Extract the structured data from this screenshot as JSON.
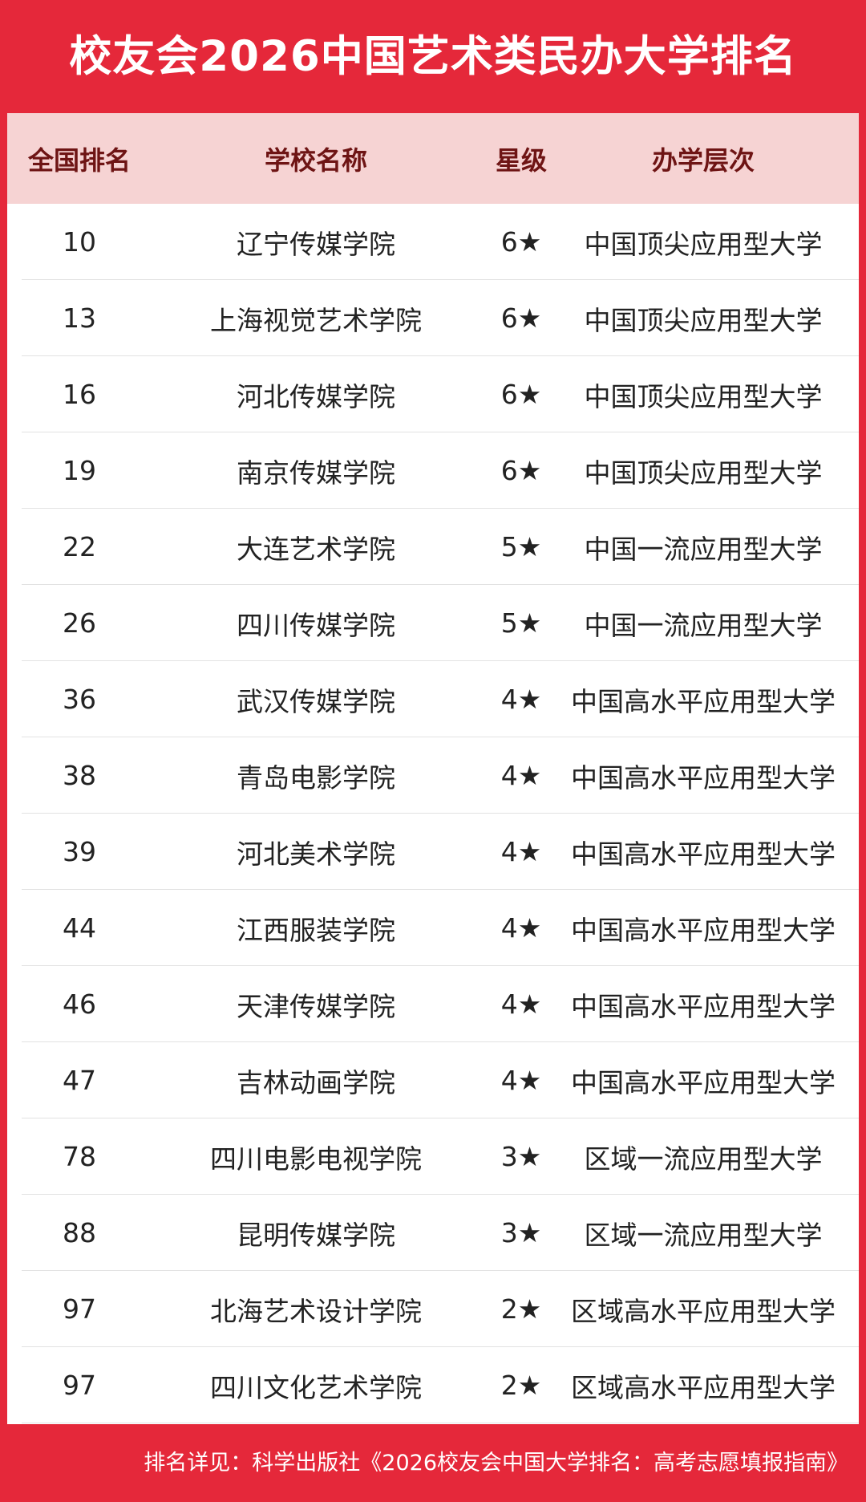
{
  "header": {
    "title": "校友会2026中国艺术类民办大学排名"
  },
  "table": {
    "columns": [
      "全国排名",
      "学校名称",
      "星级",
      "办学层次"
    ],
    "rows": [
      [
        "10",
        "辽宁传媒学院",
        "6★",
        "中国顶尖应用型大学"
      ],
      [
        "13",
        "上海视觉艺术学院",
        "6★",
        "中国顶尖应用型大学"
      ],
      [
        "16",
        "河北传媒学院",
        "6★",
        "中国顶尖应用型大学"
      ],
      [
        "19",
        "南京传媒学院",
        "6★",
        "中国顶尖应用型大学"
      ],
      [
        "22",
        "大连艺术学院",
        "5★",
        "中国一流应用型大学"
      ],
      [
        "26",
        "四川传媒学院",
        "5★",
        "中国一流应用型大学"
      ],
      [
        "36",
        "武汉传媒学院",
        "4★",
        "中国高水平应用型大学"
      ],
      [
        "38",
        "青岛电影学院",
        "4★",
        "中国高水平应用型大学"
      ],
      [
        "39",
        "河北美术学院",
        "4★",
        "中国高水平应用型大学"
      ],
      [
        "44",
        "江西服装学院",
        "4★",
        "中国高水平应用型大学"
      ],
      [
        "46",
        "天津传媒学院",
        "4★",
        "中国高水平应用型大学"
      ],
      [
        "47",
        "吉林动画学院",
        "4★",
        "中国高水平应用型大学"
      ],
      [
        "78",
        "四川电影电视学院",
        "3★",
        "区域一流应用型大学"
      ],
      [
        "88",
        "昆明传媒学院",
        "3★",
        "区域一流应用型大学"
      ],
      [
        "97",
        "北海艺术设计学院",
        "2★",
        "区域高水平应用型大学"
      ],
      [
        "97",
        "四川文化艺术学院",
        "2★",
        "区域高水平应用型大学"
      ]
    ]
  },
  "footer": {
    "note": "排名详见：科学出版社《2026校友会中国大学排名：高考志愿填报指南》"
  }
}
